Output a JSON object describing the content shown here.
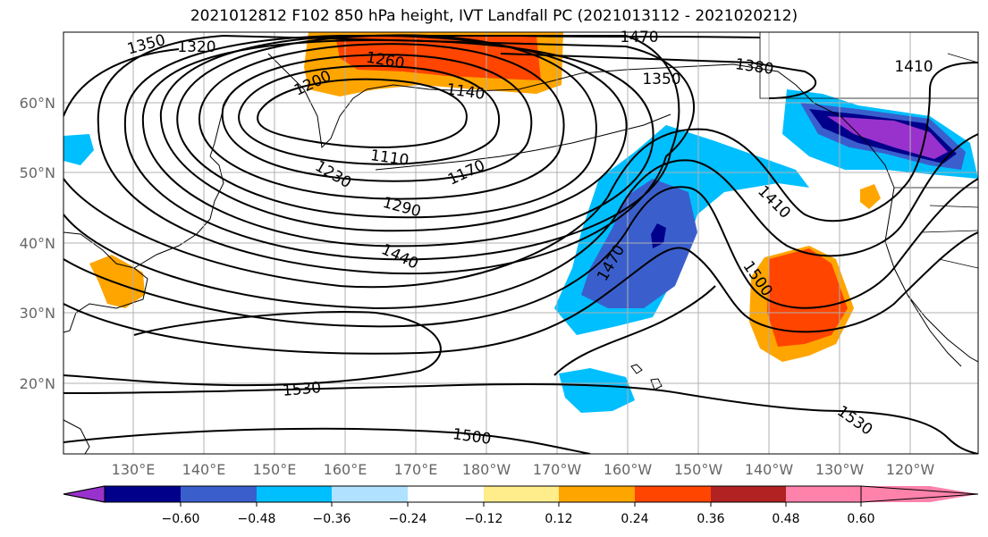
{
  "title": "2021012812 F102 850 hPa height, IVT Landfall PC (2021013112 - 2021020212)",
  "map": {
    "lat_labels": [
      "60°N",
      "50°N",
      "40°N",
      "30°N",
      "20°N"
    ],
    "lon_labels": [
      "130°E",
      "140°E",
      "150°E",
      "160°E",
      "170°E",
      "180°W",
      "170°W",
      "160°W",
      "150°W",
      "140°W",
      "130°W",
      "120°W"
    ],
    "contour_labels": [
      "1350",
      "1320",
      "1260",
      "1200",
      "1140",
      "1110",
      "1170",
      "1230",
      "1290",
      "1440",
      "1470",
      "1380",
      "1350",
      "1410",
      "1410",
      "1500",
      "1470",
      "1530",
      "1500",
      "1530"
    ]
  },
  "colorbar": {
    "colors": [
      "#9932CC",
      "#00008B",
      "#3A5FCD",
      "#00BFFF",
      "#B0E2FF",
      "#FFFFFF",
      "#FFEC8B",
      "#FFA500",
      "#FF4500",
      "#B22222",
      "#FF82AB"
    ],
    "tick_labels": [
      "−0.60",
      "−0.48",
      "−0.36",
      "−0.24",
      "−0.12",
      "0.12",
      "0.24",
      "0.36",
      "0.48",
      "0.60"
    ]
  }
}
